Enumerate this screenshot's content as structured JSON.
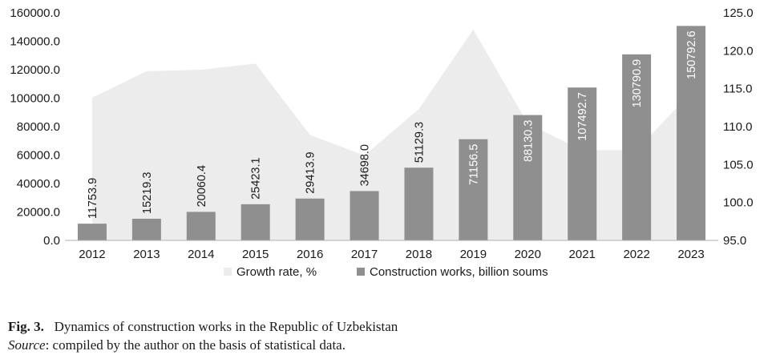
{
  "chart_data": {
    "type": "bar",
    "categories": [
      "2012",
      "2013",
      "2014",
      "2015",
      "2016",
      "2017",
      "2018",
      "2019",
      "2020",
      "2021",
      "2022",
      "2023"
    ],
    "series": [
      {
        "name": "Construction works, billion soums",
        "chart_kind": "bar",
        "axis": "left",
        "color": "#8f8f8f",
        "values": [
          11753.9,
          15219.3,
          20060.4,
          25423.1,
          29413.9,
          34698.0,
          51129.3,
          71156.5,
          88130.3,
          107492.7,
          130790.9,
          150792.6
        ],
        "labels": [
          "11753.9",
          "15219.3",
          "20060.4",
          "25423.1",
          "29413.9",
          "34698.0",
          "51129.3",
          "71156.5",
          "88130.3",
          "107492.7",
          "130790.9",
          "150792.6"
        ]
      },
      {
        "name": "Growth rate, %",
        "chart_kind": "area",
        "axis": "right",
        "color": "#ececec",
        "values": [
          113.8,
          117.3,
          117.5,
          118.3,
          108.9,
          106.2,
          112.3,
          122.8,
          110.4,
          106.9,
          106.9,
          114.5
        ]
      }
    ],
    "y_left": {
      "ylim": [
        0,
        160000
      ],
      "ticks": [
        0,
        20000,
        40000,
        60000,
        80000,
        100000,
        120000,
        140000,
        160000
      ],
      "tick_labels": [
        "0.0",
        "20000.0",
        "40000.0",
        "60000.0",
        "80000.0",
        "100000.0",
        "120000.0",
        "140000.0",
        "160000.0"
      ]
    },
    "y_right": {
      "ylim": [
        95,
        125
      ],
      "ticks": [
        95,
        100,
        105,
        110,
        115,
        120,
        125
      ],
      "tick_labels": [
        "95.0",
        "100.0",
        "105.0",
        "110.0",
        "115.0",
        "120.0",
        "125.0"
      ]
    },
    "grid": false,
    "legend": "bottom",
    "legend_entries": [
      {
        "label": "Growth rate, %",
        "color": "#ececec"
      },
      {
        "label": "Construction works, billion soums",
        "color": "#8f8f8f"
      }
    ]
  },
  "caption": {
    "fig_label": "Fig. 3.",
    "title": "Dynamics of construction works in the Republic of Uzbekistan",
    "source_label": "Source",
    "source_text": ": compiled by the author on the basis of statistical data."
  }
}
